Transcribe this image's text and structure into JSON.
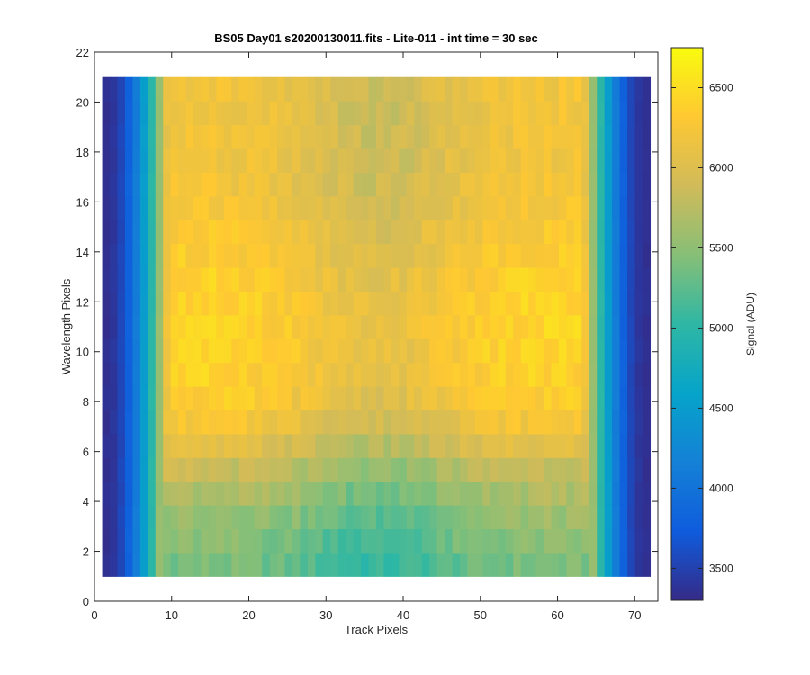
{
  "chart_data": {
    "type": "heatmap",
    "title": "BS05 Day01  s20200130011.fits - Lite-011 - int time = 30 sec",
    "xlabel": "Track Pixels",
    "ylabel": "Wavelength Pixels",
    "xlim": [
      0,
      73
    ],
    "ylim": [
      0,
      22
    ],
    "x_ticks": [
      "0",
      "10",
      "20",
      "30",
      "40",
      "50",
      "60",
      "70"
    ],
    "y_ticks": [
      "0",
      "2",
      "4",
      "6",
      "8",
      "10",
      "12",
      "14",
      "16",
      "18",
      "20",
      "22"
    ],
    "x_range": [
      1,
      72
    ],
    "y_range": [
      1,
      21
    ],
    "colorbar": {
      "label": "Signal (ADU)",
      "range": [
        3300,
        6750
      ],
      "ticks": [
        "3500",
        "4000",
        "4500",
        "5000",
        "5500",
        "6000",
        "6500"
      ],
      "colormap": "parula"
    },
    "track_profile_edges": {
      "columns_1_to_9": [
        3350,
        3400,
        3550,
        3800,
        4100,
        4500,
        5000,
        5550,
        6000
      ],
      "columns_64_to_72": [
        6000,
        5550,
        5000,
        4500,
        4100,
        3800,
        3550,
        3400,
        3350
      ]
    },
    "row_profile_interior": {
      "rows_1_to_21": [
        5400,
        5480,
        5580,
        5700,
        5850,
        6050,
        6250,
        6350,
        6400,
        6420,
        6430,
        6420,
        6400,
        6350,
        6300,
        6250,
        6220,
        6200,
        6200,
        6200,
        6220
      ]
    },
    "center_dip": 350,
    "grid": false,
    "legend": "colorbar-right"
  }
}
